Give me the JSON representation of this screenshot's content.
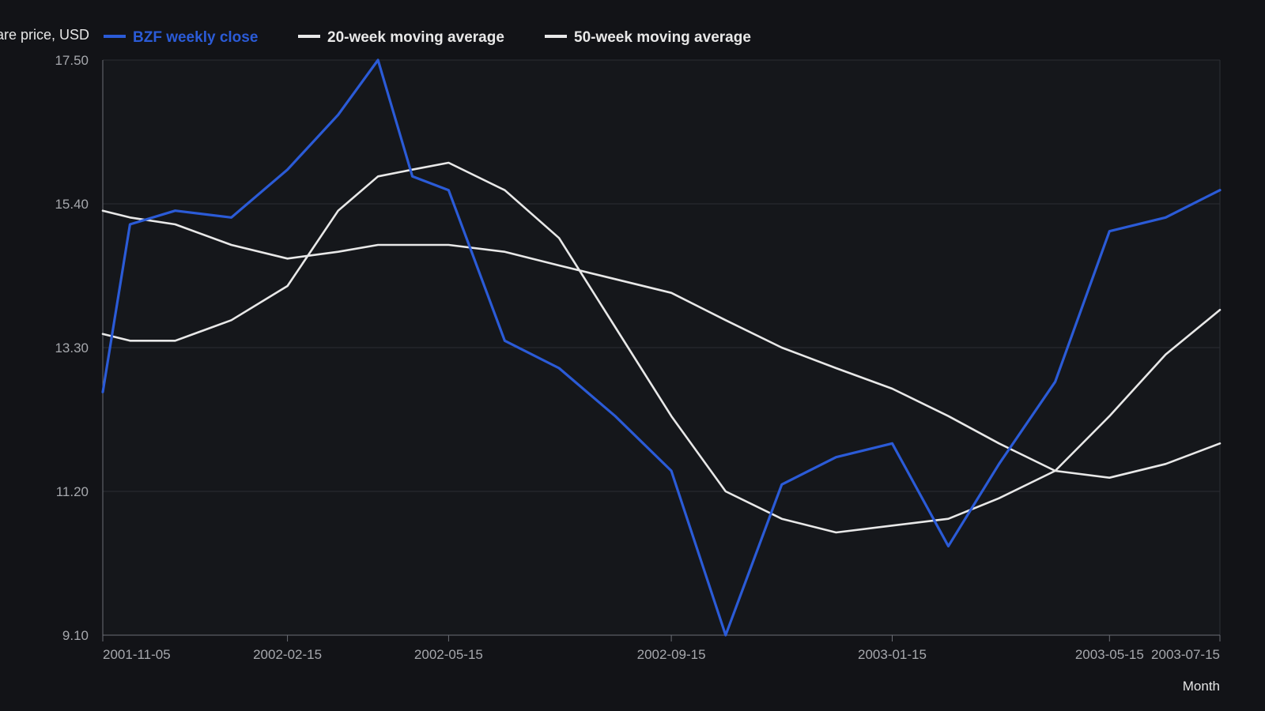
{
  "chart_data": {
    "type": "line",
    "title": "",
    "ylabel": "Share price, USD",
    "xlabel": "Month",
    "ylim": [
      9.1,
      17.5
    ],
    "yticks": [
      "9.10",
      "11.20",
      "13.30",
      "15.40",
      "17.50"
    ],
    "xlim": [
      "2001-11-05",
      "2003-07-15"
    ],
    "xticks": [
      "2001-11-05",
      "2002-02-15",
      "2002-05-15",
      "2002-09-15",
      "2003-01-15",
      "2003-05-15",
      "2003-07-15"
    ],
    "grid": true,
    "legend_position": "top-left",
    "x": [
      "2001-11-05",
      "2001-11-20",
      "2001-12-15",
      "2002-01-15",
      "2002-02-15",
      "2002-03-15",
      "2002-04-06",
      "2002-04-25",
      "2002-05-15",
      "2002-06-15",
      "2002-07-15",
      "2002-08-15",
      "2002-09-15",
      "2002-10-15",
      "2002-11-15",
      "2002-12-15",
      "2003-01-15",
      "2003-02-15",
      "2003-03-15",
      "2003-04-15",
      "2003-05-15",
      "2003-06-15",
      "2003-07-15"
    ],
    "series": [
      {
        "name": "BZF weekly close",
        "color": "#2b5bd7",
        "values": [
          12.65,
          15.1,
          15.3,
          15.2,
          15.9,
          16.7,
          17.5,
          15.8,
          15.6,
          13.4,
          13.0,
          12.3,
          11.5,
          9.1,
          11.3,
          11.7,
          11.9,
          10.4,
          11.6,
          12.8,
          15.0,
          15.2,
          15.6
        ]
      },
      {
        "name": "20-week moving average",
        "color": "#e8e8e8",
        "values": [
          13.5,
          13.4,
          13.4,
          13.7,
          14.2,
          15.3,
          15.8,
          15.9,
          16.0,
          15.6,
          14.9,
          13.6,
          12.3,
          11.2,
          10.8,
          10.6,
          10.7,
          10.8,
          11.1,
          11.5,
          12.3,
          13.2,
          13.85
        ]
      },
      {
        "name": "50-week moving average",
        "color": "#e8e8e8",
        "values": [
          15.3,
          15.2,
          15.1,
          14.8,
          14.6,
          14.7,
          14.8,
          14.8,
          14.8,
          14.7,
          14.5,
          14.3,
          14.1,
          13.7,
          13.3,
          13.0,
          12.7,
          12.3,
          11.9,
          11.5,
          11.4,
          11.6,
          11.9
        ]
      }
    ]
  }
}
